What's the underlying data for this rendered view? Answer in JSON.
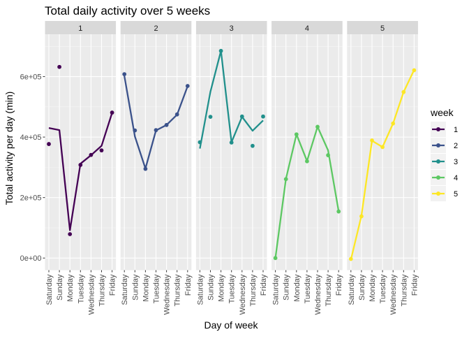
{
  "chart_data": {
    "type": "line",
    "title": "Total daily activity over 5 weeks",
    "xlabel": "Day of week",
    "ylabel": "Total activity per day (min)",
    "facet_labels": [
      "1",
      "2",
      "3",
      "4",
      "5"
    ],
    "categories": [
      "Saturday",
      "Sunday",
      "Monday",
      "Tuesday",
      "Wednesday",
      "Thursday",
      "Friday"
    ],
    "y_ticks": [
      {
        "value": 0,
        "label": "0e+00"
      },
      {
        "value": 200000,
        "label": "2e+05"
      },
      {
        "value": 400000,
        "label": "4e+05"
      },
      {
        "value": 600000,
        "label": "6e+05"
      }
    ],
    "ylim": [
      -40000,
      740000
    ],
    "grid": true,
    "legend": {
      "title": "week",
      "placement": "right",
      "entries": [
        "1",
        "2",
        "3",
        "4",
        "5"
      ]
    },
    "series": [
      {
        "name": "1",
        "color": "#440154",
        "points": [
          377000,
          632000,
          79000,
          308000,
          341000,
          356000,
          481000
        ],
        "line": [
          430000,
          423000,
          92000,
          312000,
          340000,
          371000,
          480000
        ]
      },
      {
        "name": "2",
        "color": "#3B528B",
        "points": [
          608000,
          422000,
          295000,
          423000,
          440000,
          475000,
          569000
        ],
        "line": [
          602000,
          402000,
          296000,
          422000,
          440000,
          474000,
          568000
        ]
      },
      {
        "name": "3",
        "color": "#21908C",
        "points": [
          383000,
          467000,
          685000,
          382000,
          468000,
          371000,
          468000
        ],
        "line": [
          362000,
          550000,
          685000,
          383000,
          467000,
          421000,
          455000
        ]
      },
      {
        "name": "4",
        "color": "#5DC863",
        "points": [
          0,
          261000,
          409000,
          320000,
          434000,
          340000,
          154000
        ],
        "line": [
          0,
          262000,
          409000,
          321000,
          434000,
          356000,
          155000
        ]
      },
      {
        "name": "5",
        "color": "#FDE725",
        "points": [
          -3000,
          138000,
          389000,
          367000,
          445000,
          549000,
          621000
        ],
        "line": [
          -5000,
          140000,
          388000,
          367000,
          445000,
          549000,
          622000
        ]
      }
    ]
  }
}
